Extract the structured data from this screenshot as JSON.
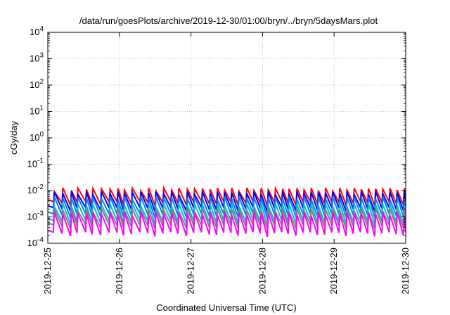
{
  "chart_data": {
    "type": "line",
    "title": "/data/run/goesPlots/archive/2019-12-30/01:00/bryn/../bryn/5daysMars.plot",
    "xlabel": "Coordinated Universal Time (UTC)",
    "ylabel": "cGy/day",
    "yscale": "log",
    "ylim": [
      0.0001,
      10000
    ],
    "xlim": [
      "2019-12-25",
      "2019-12-30"
    ],
    "grid": true,
    "x_ticks": [
      "2019-12-25",
      "2019-12-26",
      "2019-12-27",
      "2019-12-28",
      "2019-12-29",
      "2019-12-30"
    ],
    "y_ticks": [
      {
        "base": "10",
        "exp": "-4"
      },
      {
        "base": "10",
        "exp": "-3"
      },
      {
        "base": "10",
        "exp": "-2"
      },
      {
        "base": "10",
        "exp": "-1"
      },
      {
        "base": "10",
        "exp": "0"
      },
      {
        "base": "10",
        "exp": "1"
      },
      {
        "base": "10",
        "exp": "2"
      },
      {
        "base": "10",
        "exp": "3"
      },
      {
        "base": "10",
        "exp": "4"
      }
    ],
    "cycle_peaks_days": [
      0.09,
      0.21,
      0.33,
      0.42,
      0.54,
      0.63,
      0.75,
      0.87,
      0.98,
      1.07,
      1.18,
      1.3,
      1.41,
      1.51,
      1.62,
      1.73,
      1.83,
      1.95,
      2.05,
      2.16,
      2.27,
      2.37,
      2.47,
      2.57,
      2.67,
      2.78,
      2.88,
      2.98,
      3.08,
      3.18,
      3.28,
      3.37,
      3.48,
      3.58,
      3.68,
      3.78,
      3.88,
      3.98,
      4.08,
      4.18,
      4.28,
      4.38,
      4.48,
      4.58,
      4.68,
      4.78,
      4.88,
      4.98
    ],
    "series": [
      {
        "color": "#ff0000",
        "peak": 0.011,
        "trough": 0.0032
      },
      {
        "color": "#0000ff",
        "peak": 0.008,
        "trough": 0.0019
      },
      {
        "color": "#0080ff",
        "peak": 0.0052,
        "trough": 0.0011
      },
      {
        "color": "#00c0c0",
        "peak": 0.0028,
        "trough": 0.00062
      },
      {
        "color": "#808080",
        "peak": 0.0018,
        "trough": 0.00042
      },
      {
        "color": "#ff00ff",
        "peak": 0.0013,
        "trough": 0.00022
      }
    ]
  }
}
